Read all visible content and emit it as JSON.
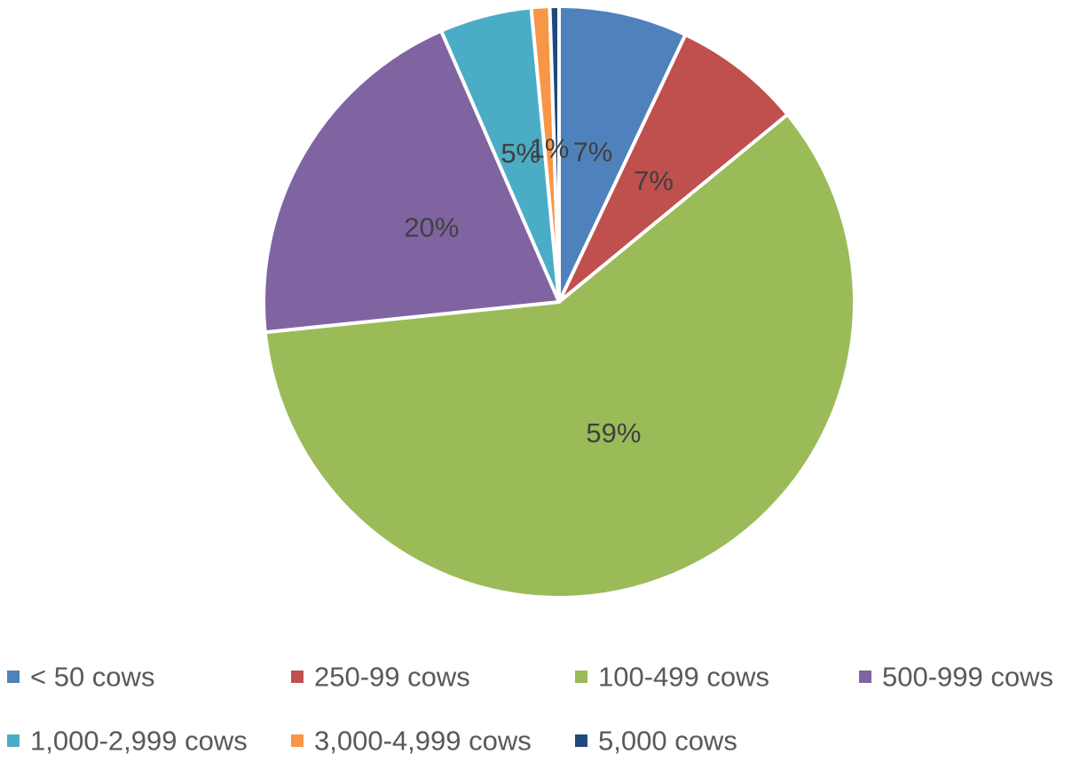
{
  "chart_data": {
    "type": "pie",
    "title": "",
    "categories": [
      "< 50 cows",
      "250-99 cows",
      "100-499 cows",
      "500-999 cows",
      "1,000-2,999 cows",
      "3,000-4,999 cows",
      "5,000 cows"
    ],
    "values": [
      7,
      7,
      59,
      20,
      5,
      1,
      0.5
    ],
    "data_labels": [
      "7%",
      "7%",
      "59%",
      "20%",
      "5%",
      "1%",
      ""
    ],
    "colors": [
      "#4f81bd",
      "#c0504d",
      "#9bbb59",
      "#8064a2",
      "#4bacc6",
      "#f79646",
      "#1f497d"
    ],
    "legend": {
      "placement": "bottom"
    }
  }
}
